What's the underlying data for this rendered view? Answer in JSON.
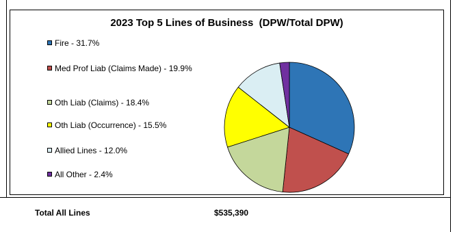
{
  "chart_data": {
    "type": "pie",
    "title": "2023 Top 5 Lines of Business  (DPW/Total DPW)",
    "slices": [
      {
        "label": "Fire - 31.7%",
        "value": 31.7,
        "color": "#2E75B6"
      },
      {
        "label": "Med Prof Liab (Claims Made) - 19.9%",
        "value": 19.9,
        "color": "#C0504D"
      },
      {
        "label": "Oth Liab (Claims) - 18.4%",
        "value": 18.4,
        "color": "#C4D79B"
      },
      {
        "label": "Oth Liab (Occurrence) - 15.5%",
        "value": 15.5,
        "color": "#FFFF00"
      },
      {
        "label": "Allied Lines - 12.0%",
        "value": 12.0,
        "color": "#DAEEF3"
      },
      {
        "label": "All Other - 2.4%",
        "value": 2.4,
        "color": "#7030A0"
      }
    ],
    "legend_position": "left"
  },
  "footer": {
    "total_label": "Total All Lines",
    "total_value": "$535,390"
  }
}
